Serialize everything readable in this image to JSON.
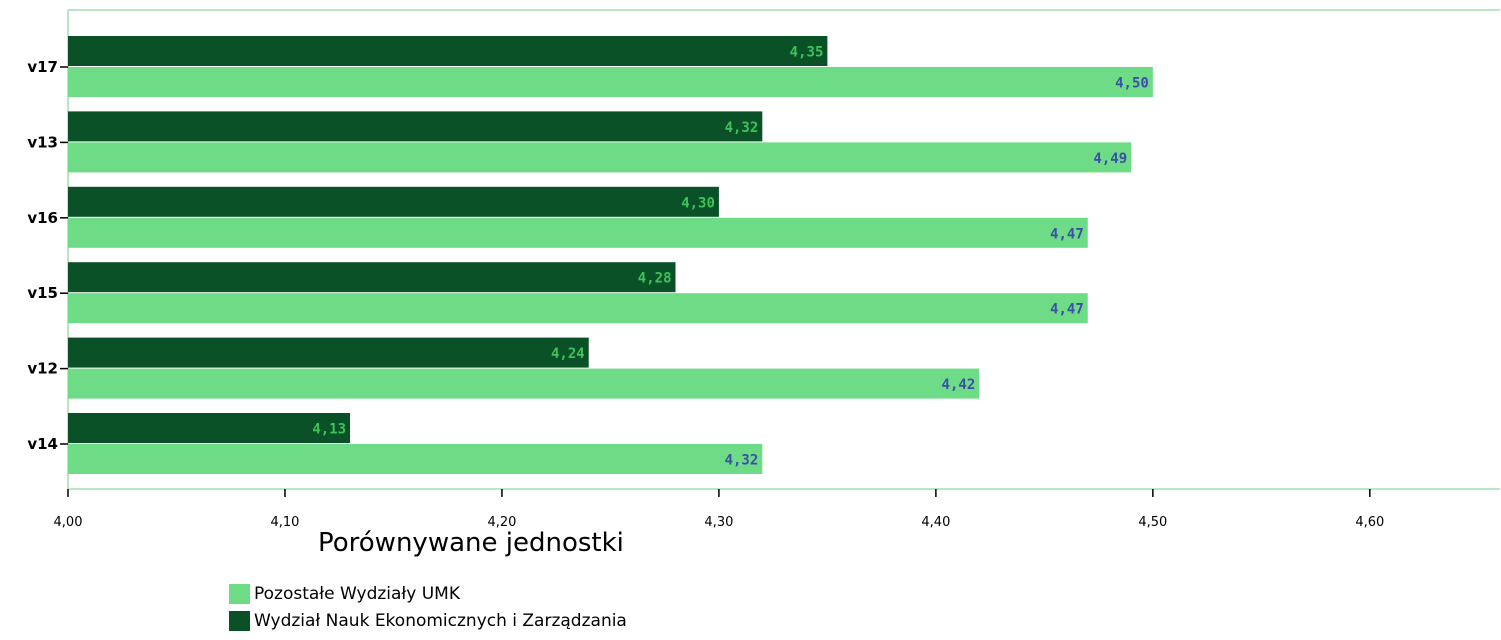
{
  "chart_data": {
    "type": "bar",
    "orientation": "horizontal",
    "categories": [
      "v17",
      "v13",
      "v16",
      "v15",
      "v12",
      "v14"
    ],
    "series": [
      {
        "name": "Wydział Nauk Ekonomicznych i Zarządzania",
        "color": "#0b5128",
        "label_color": "#3ec35a",
        "values": [
          4.35,
          4.32,
          4.3,
          4.28,
          4.24,
          4.13
        ],
        "labels": [
          "4,35",
          "4,32",
          "4,30",
          "4,28",
          "4,24",
          "4,13"
        ]
      },
      {
        "name": "Pozostałe Wydziały UMK",
        "color": "#6edb86",
        "label_color": "#3b4fa8",
        "values": [
          4.5,
          4.49,
          4.47,
          4.47,
          4.42,
          4.32
        ],
        "labels": [
          "4,50",
          "4,49",
          "4,47",
          "4,47",
          "4,42",
          "4,32"
        ]
      }
    ],
    "xlim": [
      4.0,
      4.66
    ],
    "xticks": [
      4.0,
      4.1,
      4.2,
      4.3,
      4.4,
      4.5,
      4.6
    ],
    "xtick_labels": [
      "4,00",
      "4,10",
      "4,20",
      "4,30",
      "4,40",
      "4,50",
      "4,60"
    ],
    "axis_color": "#b9e6c3",
    "grid": false,
    "legend": {
      "title": "Porównywane jednostki",
      "placement": "bottom",
      "items": [
        {
          "label": "Pozostałe Wydziały UMK",
          "color": "#6edb86"
        },
        {
          "label": "Wydział Nauk Ekonomicznych i Zarządzania",
          "color": "#0b5128"
        }
      ]
    }
  }
}
